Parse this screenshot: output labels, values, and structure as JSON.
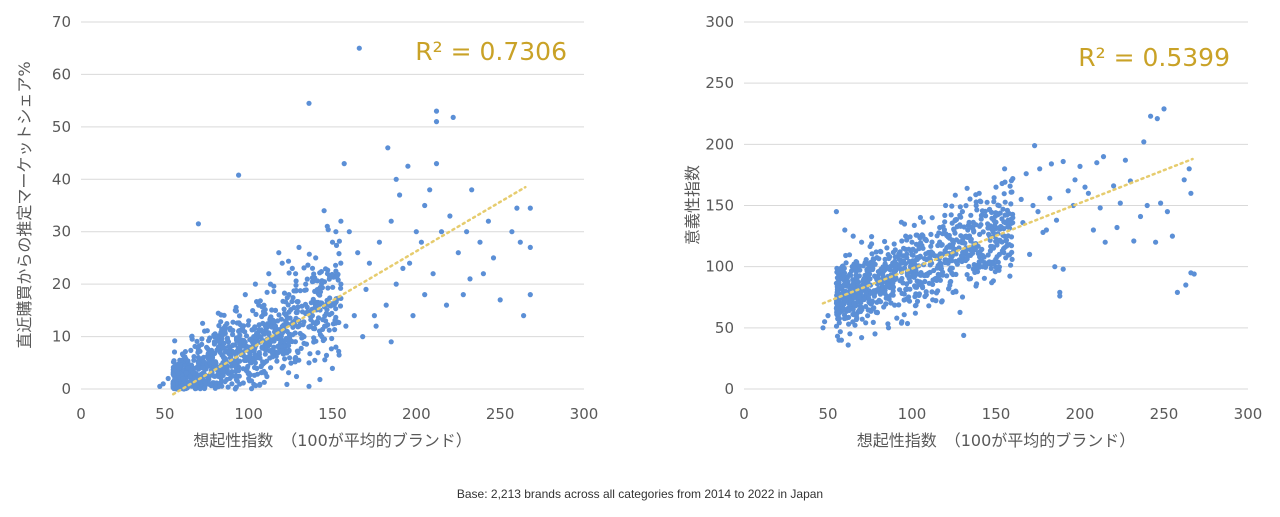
{
  "caption": "Base: 2,213 brands across all categories from 2014 to 2022 in Japan",
  "colors": {
    "point": "#5b8fd6",
    "trend": "#e6cc6e",
    "grid": "#d9d9d9",
    "r2": "#c9a227"
  },
  "chart_data": [
    {
      "type": "scatter",
      "title": "",
      "xlabel": "想起性指数　（100が平均的ブランド）",
      "ylabel": "直近購買からの推定マーケットシェア%",
      "xlim": [
        0,
        300
      ],
      "ylim": [
        0,
        70
      ],
      "xticks": [
        0,
        50,
        100,
        150,
        200,
        250,
        300
      ],
      "yticks": [
        0,
        10,
        20,
        30,
        40,
        50,
        60,
        70
      ],
      "grid": "horizontal",
      "annotation": "R² = 0.7306",
      "trendline": {
        "type": "linear",
        "x": [
          55,
          265
        ],
        "y": [
          -1.0,
          38.5
        ]
      },
      "points": [
        [
          166,
          65
        ],
        [
          136,
          54.5
        ],
        [
          94,
          40.8
        ],
        [
          70,
          31.5
        ],
        [
          212,
          53
        ],
        [
          212,
          51
        ],
        [
          222,
          51.8
        ],
        [
          157,
          43
        ],
        [
          183,
          46
        ],
        [
          195,
          42.5
        ],
        [
          212,
          43
        ],
        [
          260,
          34.5
        ],
        [
          268,
          34.5
        ],
        [
          262,
          28
        ],
        [
          257,
          30
        ],
        [
          250,
          17
        ],
        [
          268,
          18
        ],
        [
          264,
          14
        ],
        [
          268,
          27
        ],
        [
          233,
          38
        ],
        [
          220,
          33
        ],
        [
          205,
          35
        ],
        [
          200,
          30
        ],
        [
          190,
          37
        ],
        [
          185,
          32
        ],
        [
          178,
          28
        ],
        [
          172,
          24
        ],
        [
          165,
          26
        ],
        [
          160,
          30
        ],
        [
          155,
          32
        ],
        [
          150,
          28
        ],
        [
          147,
          22
        ],
        [
          140,
          25
        ],
        [
          232,
          21
        ],
        [
          228,
          18
        ],
        [
          218,
          16
        ],
        [
          210,
          22
        ],
        [
          203,
          28
        ],
        [
          196,
          24
        ],
        [
          188,
          20
        ],
        [
          182,
          16
        ],
        [
          175,
          14
        ],
        [
          170,
          19
        ],
        [
          163,
          14
        ],
        [
          158,
          12
        ],
        [
          176,
          12
        ],
        [
          168,
          10
        ],
        [
          185,
          9
        ],
        [
          243,
          32
        ],
        [
          238,
          28
        ],
        [
          246,
          25
        ],
        [
          225,
          26
        ],
        [
          215,
          30
        ],
        [
          205,
          18
        ],
        [
          198,
          14
        ],
        [
          192,
          23
        ],
        [
          230,
          30
        ],
        [
          240,
          22
        ],
        [
          208,
          38
        ],
        [
          188,
          40
        ],
        [
          145,
          34
        ],
        [
          152,
          30
        ],
        [
          155,
          20
        ],
        [
          148,
          16
        ],
        [
          142,
          18
        ],
        [
          138,
          14
        ],
        [
          130,
          27
        ],
        [
          128,
          22
        ],
        [
          124,
          18
        ],
        [
          120,
          24
        ],
        [
          133,
          10
        ],
        [
          116,
          15
        ],
        [
          113,
          20
        ],
        [
          110,
          12
        ],
        [
          106,
          16
        ],
        [
          103,
          10
        ],
        [
          100,
          13
        ],
        [
          97,
          9
        ],
        [
          94,
          11
        ],
        [
          91,
          7
        ],
        [
          88,
          9
        ],
        [
          85,
          6
        ],
        [
          82,
          8
        ],
        [
          79,
          5
        ],
        [
          76,
          6
        ],
        [
          73,
          4
        ],
        [
          70,
          5
        ],
        [
          67,
          3
        ],
        [
          64,
          4
        ],
        [
          61,
          2
        ],
        [
          58,
          3
        ],
        [
          55,
          1
        ],
        [
          52,
          2
        ],
        [
          49,
          1
        ],
        [
          47,
          0.5
        ],
        [
          60,
          0.5
        ],
        [
          66,
          10
        ],
        [
          72,
          8.5
        ],
        [
          80,
          10.5
        ],
        [
          86,
          12
        ],
        [
          92,
          15
        ],
        [
          98,
          18
        ],
        [
          104,
          20
        ],
        [
          112,
          22
        ],
        [
          118,
          26
        ],
        [
          126,
          23
        ],
        [
          134,
          20
        ],
        [
          140,
          16
        ],
        [
          146,
          12
        ],
        [
          152,
          8
        ],
        [
          136,
          5
        ],
        [
          128,
          6
        ],
        [
          120,
          4
        ],
        [
          110,
          3
        ],
        [
          100,
          2
        ],
        [
          90,
          1
        ],
        [
          80,
          0.5
        ],
        [
          68,
          0.3
        ],
        [
          74,
          1.5
        ],
        [
          84,
          2.5
        ],
        [
          94,
          3.5
        ],
        [
          104,
          5
        ],
        [
          114,
          7
        ],
        [
          124,
          9
        ],
        [
          130,
          12
        ],
        [
          122,
          13
        ],
        [
          116,
          10
        ],
        [
          108,
          8
        ],
        [
          100,
          6
        ],
        [
          92,
          4.5
        ]
      ],
      "cloud": {
        "count": 900,
        "xmin": 55,
        "xmax": 155,
        "slope": 0.17,
        "intercept": -9.0,
        "spread": 3.2,
        "floor": 0
      }
    },
    {
      "type": "scatter",
      "title": "",
      "xlabel": "想起性指数　（100が平均的ブランド）",
      "ylabel": "意義性指数",
      "xlim": [
        0,
        300
      ],
      "ylim": [
        0,
        300
      ],
      "xticks": [
        0,
        50,
        100,
        150,
        200,
        250,
        300
      ],
      "yticks": [
        0,
        50,
        100,
        150,
        200,
        250,
        300
      ],
      "grid": "horizontal",
      "annotation": "R² = 0.5399",
      "trendline": {
        "type": "linear",
        "x": [
          47,
          267
        ],
        "y": [
          70,
          188
        ]
      },
      "points": [
        [
          250,
          229
        ],
        [
          242,
          223
        ],
        [
          246,
          221
        ],
        [
          238,
          202
        ],
        [
          173,
          199
        ],
        [
          227,
          187
        ],
        [
          214,
          190
        ],
        [
          210,
          185
        ],
        [
          200,
          182
        ],
        [
          190,
          186
        ],
        [
          183,
          184
        ],
        [
          176,
          180
        ],
        [
          168,
          176
        ],
        [
          160,
          172
        ],
        [
          197,
          171
        ],
        [
          205,
          160
        ],
        [
          220,
          166
        ],
        [
          230,
          170
        ],
        [
          265,
          180
        ],
        [
          266,
          160
        ],
        [
          262,
          171
        ],
        [
          248,
          152
        ],
        [
          252,
          145
        ],
        [
          236,
          141
        ],
        [
          232,
          121
        ],
        [
          245,
          120
        ],
        [
          255,
          125
        ],
        [
          258,
          79
        ],
        [
          263,
          85
        ],
        [
          266,
          95
        ],
        [
          268,
          94
        ],
        [
          190,
          98
        ],
        [
          185,
          100
        ],
        [
          188,
          76
        ],
        [
          188,
          79
        ],
        [
          180,
          130
        ],
        [
          175,
          145
        ],
        [
          165,
          155
        ],
        [
          160,
          140
        ],
        [
          155,
          125
        ],
        [
          150,
          165
        ],
        [
          145,
          135
        ],
        [
          140,
          160
        ],
        [
          135,
          142
        ],
        [
          130,
          145
        ],
        [
          125,
          130
        ],
        [
          120,
          150
        ],
        [
          118,
          118
        ],
        [
          112,
          140
        ],
        [
          106,
          126
        ],
        [
          100,
          120
        ],
        [
          95,
          115
        ],
        [
          90,
          108
        ],
        [
          85,
          100
        ],
        [
          80,
          96
        ],
        [
          75,
          90
        ],
        [
          70,
          84
        ],
        [
          65,
          78
        ],
        [
          60,
          72
        ],
        [
          55,
          66
        ],
        [
          50,
          60
        ],
        [
          48,
          55
        ],
        [
          47,
          50
        ],
        [
          55,
          145
        ],
        [
          60,
          130
        ],
        [
          65,
          125
        ],
        [
          70,
          120
        ],
        [
          58,
          40
        ],
        [
          62,
          36
        ],
        [
          70,
          42
        ],
        [
          78,
          45
        ],
        [
          86,
          50
        ],
        [
          94,
          55
        ],
        [
          102,
          62
        ],
        [
          110,
          68
        ],
        [
          118,
          72
        ],
        [
          126,
          80
        ],
        [
          134,
          90
        ],
        [
          142,
          100
        ],
        [
          196,
          150
        ],
        [
          212,
          148
        ],
        [
          224,
          152
        ],
        [
          240,
          150
        ],
        [
          170,
          110
        ],
        [
          178,
          128
        ],
        [
          186,
          138
        ],
        [
          208,
          130
        ],
        [
          222,
          132
        ],
        [
          215,
          120
        ],
        [
          203,
          165
        ],
        [
          193,
          162
        ],
        [
          182,
          156
        ],
        [
          172,
          150
        ],
        [
          166,
          136
        ],
        [
          158,
          118
        ],
        [
          152,
          110
        ],
        [
          146,
          104
        ],
        [
          139,
          96
        ],
        [
          132,
          112
        ],
        [
          127,
          102
        ]
      ],
      "cloud": {
        "count": 900,
        "xmin": 55,
        "xmax": 160,
        "slope": 0.55,
        "intercept": 45,
        "spread": 13,
        "floor": 30
      }
    }
  ]
}
